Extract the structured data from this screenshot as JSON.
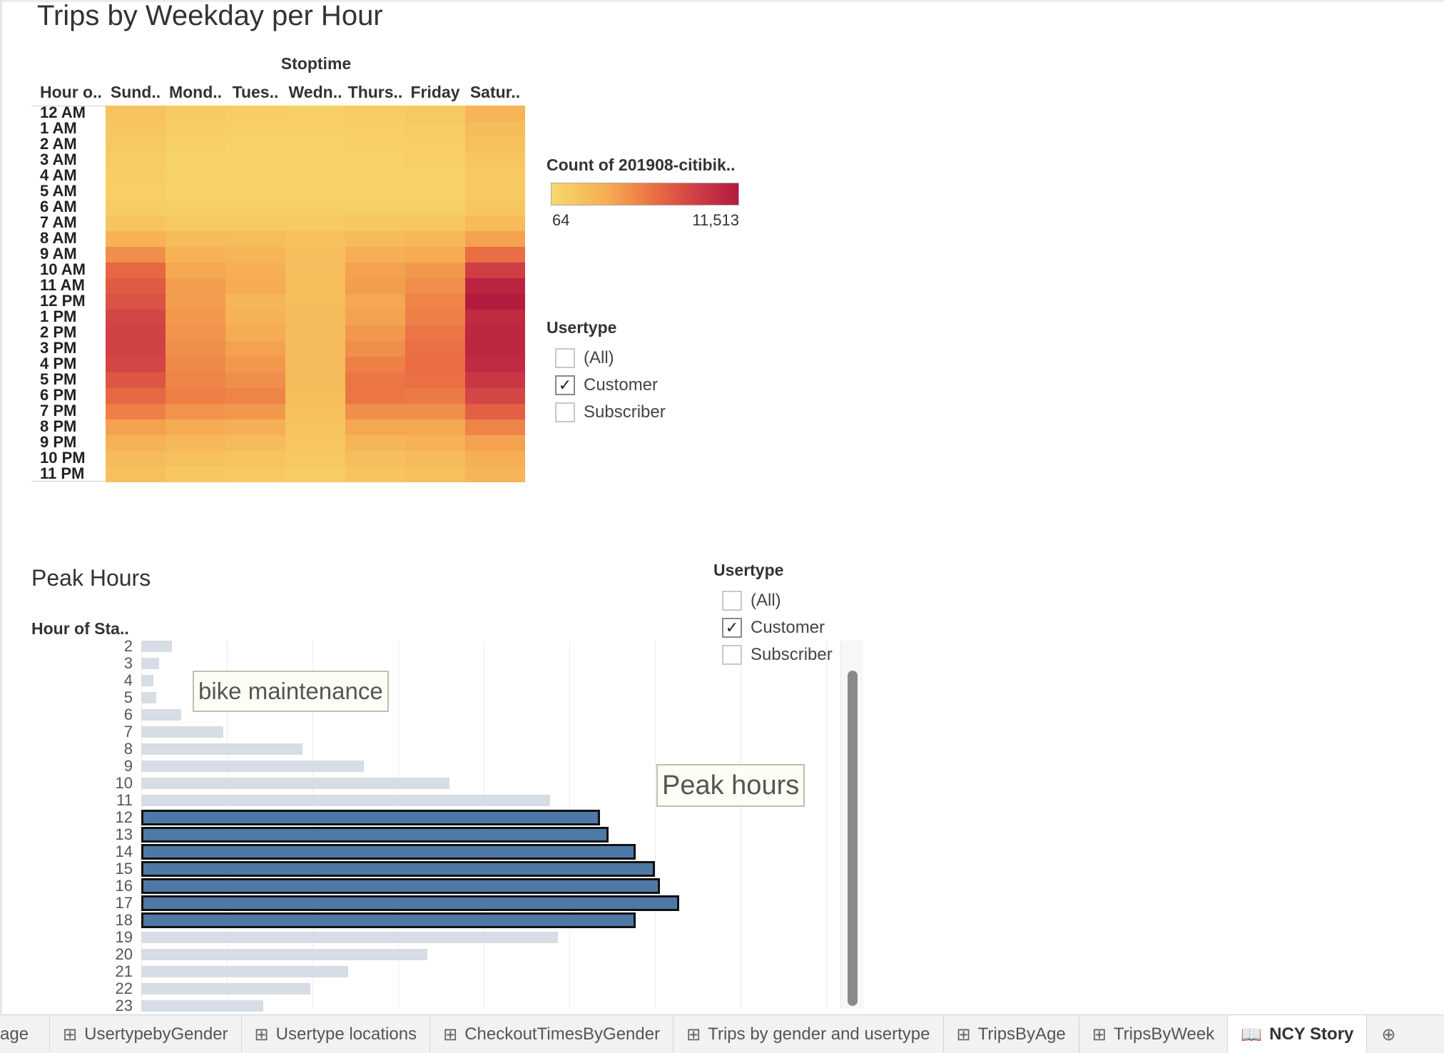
{
  "sheet": {
    "title": "Trips by Weekday per Hour"
  },
  "heatmap": {
    "column_group_title": "Stoptime",
    "row_header": "Hour o..",
    "columns": [
      "Sund..",
      "Mond..",
      "Tues..",
      "Wedn..",
      "Thurs..",
      "Friday",
      "Satur.."
    ],
    "rows": [
      "12 AM",
      "1 AM",
      "2 AM",
      "3 AM",
      "4 AM",
      "5 AM",
      "6 AM",
      "7 AM",
      "8 AM",
      "9 AM",
      "10 AM",
      "11 AM",
      "12 PM",
      "1 PM",
      "2 PM",
      "3 PM",
      "4 PM",
      "5 PM",
      "6 PM",
      "7 PM",
      "8 PM",
      "9 PM",
      "10 PM",
      "11 PM"
    ],
    "intensity": [
      [
        0.15,
        0.1,
        0.08,
        0.07,
        0.09,
        0.11,
        0.25
      ],
      [
        0.13,
        0.08,
        0.06,
        0.06,
        0.07,
        0.09,
        0.2
      ],
      [
        0.11,
        0.06,
        0.05,
        0.05,
        0.06,
        0.07,
        0.16
      ],
      [
        0.09,
        0.05,
        0.04,
        0.04,
        0.05,
        0.06,
        0.13
      ],
      [
        0.08,
        0.04,
        0.04,
        0.04,
        0.04,
        0.05,
        0.11
      ],
      [
        0.07,
        0.04,
        0.04,
        0.04,
        0.04,
        0.05,
        0.1
      ],
      [
        0.09,
        0.07,
        0.06,
        0.06,
        0.07,
        0.07,
        0.13
      ],
      [
        0.14,
        0.11,
        0.11,
        0.1,
        0.12,
        0.12,
        0.2
      ],
      [
        0.26,
        0.2,
        0.19,
        0.16,
        0.2,
        0.22,
        0.34
      ],
      [
        0.42,
        0.26,
        0.24,
        0.18,
        0.28,
        0.3,
        0.55
      ],
      [
        0.58,
        0.32,
        0.28,
        0.18,
        0.34,
        0.38,
        0.78
      ],
      [
        0.64,
        0.36,
        0.3,
        0.19,
        0.36,
        0.42,
        0.94
      ],
      [
        0.68,
        0.36,
        0.24,
        0.19,
        0.32,
        0.46,
        1.0
      ],
      [
        0.74,
        0.38,
        0.26,
        0.2,
        0.34,
        0.48,
        0.9
      ],
      [
        0.76,
        0.4,
        0.3,
        0.2,
        0.38,
        0.52,
        0.92
      ],
      [
        0.76,
        0.42,
        0.34,
        0.2,
        0.42,
        0.54,
        0.92
      ],
      [
        0.74,
        0.44,
        0.38,
        0.2,
        0.48,
        0.56,
        0.9
      ],
      [
        0.66,
        0.46,
        0.42,
        0.2,
        0.52,
        0.54,
        0.82
      ],
      [
        0.58,
        0.48,
        0.46,
        0.19,
        0.52,
        0.5,
        0.74
      ],
      [
        0.48,
        0.4,
        0.38,
        0.17,
        0.42,
        0.42,
        0.62
      ],
      [
        0.34,
        0.3,
        0.28,
        0.15,
        0.32,
        0.32,
        0.46
      ],
      [
        0.26,
        0.22,
        0.2,
        0.13,
        0.24,
        0.26,
        0.34
      ],
      [
        0.2,
        0.16,
        0.14,
        0.11,
        0.18,
        0.2,
        0.28
      ],
      [
        0.16,
        0.12,
        0.11,
        0.09,
        0.14,
        0.16,
        0.24
      ]
    ]
  },
  "color_legend": {
    "title": "Count of 201908-citibik..",
    "min_label": "64",
    "max_label": "11,513",
    "color_low": "#f7d96a",
    "color_high": "#b31b3f"
  },
  "filter_top": {
    "title": "Usertype",
    "options": [
      {
        "label": "(All)",
        "checked": false
      },
      {
        "label": "Customer",
        "checked": true
      },
      {
        "label": "Subscriber",
        "checked": false
      }
    ]
  },
  "filter_bottom": {
    "title": "Usertype",
    "options": [
      {
        "label": "(All)",
        "checked": false
      },
      {
        "label": "Customer",
        "checked": true
      },
      {
        "label": "Subscriber",
        "checked": false
      }
    ]
  },
  "peak_chart": {
    "title": "Peak Hours",
    "axis_title": "Hour of Sta..",
    "annotation_maintenance": "bike maintenance",
    "annotation_peak": "Peak hours",
    "checkmark": "✓"
  },
  "chart_data": {
    "type": "bar",
    "orientation": "horizontal",
    "categories": [
      "2",
      "3",
      "4",
      "5",
      "6",
      "7",
      "8",
      "9",
      "10",
      "11",
      "12",
      "13",
      "14",
      "15",
      "16",
      "17",
      "18",
      "19",
      "20",
      "21",
      "22",
      "23"
    ],
    "values": [
      0.045,
      0.026,
      0.018,
      0.022,
      0.058,
      0.12,
      0.235,
      0.325,
      0.45,
      0.597,
      0.67,
      0.682,
      0.722,
      0.75,
      0.757,
      0.785,
      0.722,
      0.608,
      0.418,
      0.302,
      0.247,
      0.178
    ],
    "highlighted_categories": [
      "12",
      "13",
      "14",
      "15",
      "16",
      "17",
      "18"
    ],
    "colors": {
      "default": "#d6dde4",
      "highlight": "#4e79a7",
      "highlight_border": "#111111"
    },
    "grid": true
  },
  "tabs": [
    {
      "label": "age",
      "icon": "",
      "active": false
    },
    {
      "label": "UsertypebyGender",
      "icon": "⊞",
      "active": false
    },
    {
      "label": "Usertype locations",
      "icon": "⊞",
      "active": false
    },
    {
      "label": "CheckoutTimesByGender",
      "icon": "⊞",
      "active": false
    },
    {
      "label": "Trips by gender and usertype",
      "icon": "⊞",
      "active": false
    },
    {
      "label": "TripsByAge",
      "icon": "⊞",
      "active": false
    },
    {
      "label": "TripsByWeek",
      "icon": "⊞",
      "active": false
    },
    {
      "label": "NCY Story",
      "icon": "📖",
      "active": true
    }
  ],
  "new_tab_icon": "⊕"
}
